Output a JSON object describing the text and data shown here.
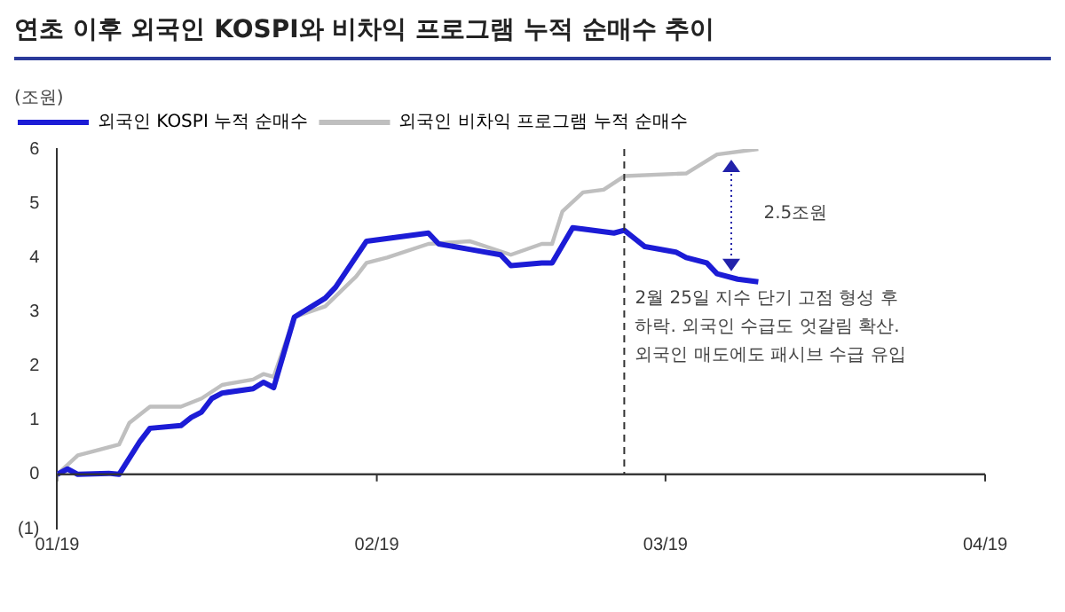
{
  "chart_data": {
    "type": "line",
    "title": "연초 이후 외국인 KOSPI와 비차익 프로그램 누적 순매수 추이",
    "ylabel": "(조원)",
    "xlim": [
      "2019-01-01",
      "2019-04-01"
    ],
    "xticks": [
      {
        "value": "2019-01-01",
        "label": "01/19"
      },
      {
        "value": "2019-02-01",
        "label": "02/19"
      },
      {
        "value": "2019-03-01",
        "label": "03/19"
      },
      {
        "value": "2019-04-01",
        "label": "04/19"
      }
    ],
    "ylim": [
      -1,
      6
    ],
    "yticks": [
      {
        "value": -1,
        "label": "(1)"
      },
      0,
      1,
      2,
      3,
      4,
      5,
      6
    ],
    "legend": "top left",
    "marker": "none",
    "line_style": "solid",
    "series": [
      {
        "name": "외국인 KOSPI 누적 순매수",
        "color": "#1c1cd6",
        "x": [
          "2019-01-01",
          "2019-01-02",
          "2019-01-03",
          "2019-01-06",
          "2019-01-07",
          "2019-01-09",
          "2019-01-10",
          "2019-01-13",
          "2019-01-14",
          "2019-01-15",
          "2019-01-16",
          "2019-01-17",
          "2019-01-20",
          "2019-01-21",
          "2019-01-22",
          "2019-01-24",
          "2019-01-27",
          "2019-01-28",
          "2019-01-31",
          "2019-02-06",
          "2019-02-07",
          "2019-02-10",
          "2019-02-13",
          "2019-02-14",
          "2019-02-17",
          "2019-02-18",
          "2019-02-20",
          "2019-02-24",
          "2019-02-25",
          "2019-02-27",
          "2019-03-02",
          "2019-03-03",
          "2019-03-05",
          "2019-03-06",
          "2019-03-08",
          "2019-03-10"
        ],
        "values": [
          0,
          0.1,
          0,
          0.02,
          0,
          0.6,
          0.85,
          0.9,
          1.05,
          1.15,
          1.4,
          1.5,
          1.58,
          1.7,
          1.6,
          2.9,
          3.25,
          3.45,
          4.3,
          4.45,
          4.25,
          4.15,
          4.05,
          3.85,
          3.9,
          3.9,
          4.55,
          4.45,
          4.5,
          4.2,
          4.1,
          4.0,
          3.9,
          3.7,
          3.6,
          3.55
        ]
      },
      {
        "name": "외국인 비차익 프로그램 누적 순매수",
        "color": "#bfbfbf",
        "x": [
          "2019-01-01",
          "2019-01-03",
          "2019-01-07",
          "2019-01-08",
          "2019-01-10",
          "2019-01-13",
          "2019-01-15",
          "2019-01-17",
          "2019-01-20",
          "2019-01-21",
          "2019-01-22",
          "2019-01-24",
          "2019-01-27",
          "2019-01-30",
          "2019-01-31",
          "2019-02-02",
          "2019-02-06",
          "2019-02-10",
          "2019-02-14",
          "2019-02-17",
          "2019-02-18",
          "2019-02-19",
          "2019-02-21",
          "2019-02-23",
          "2019-02-25",
          "2019-03-03",
          "2019-03-06",
          "2019-03-10"
        ],
        "values": [
          0,
          0.35,
          0.55,
          0.95,
          1.25,
          1.25,
          1.4,
          1.65,
          1.75,
          1.85,
          1.8,
          2.9,
          3.1,
          3.65,
          3.9,
          4.0,
          4.25,
          4.3,
          4.05,
          4.25,
          4.25,
          4.85,
          5.2,
          5.25,
          5.5,
          5.55,
          5.9,
          6.0
        ]
      }
    ],
    "ref_lines": [
      {
        "axis": "x",
        "value": "2019-02-25",
        "line_style": "dashed",
        "color": "#333333"
      }
    ],
    "annotations": [
      "2.5조원",
      "2월 25일 지수 단기 고점 형성 후 하락. 외국인 수급도 엇갈림 확산. 외국인 매도에도 패시브 수급 유입"
    ]
  }
}
